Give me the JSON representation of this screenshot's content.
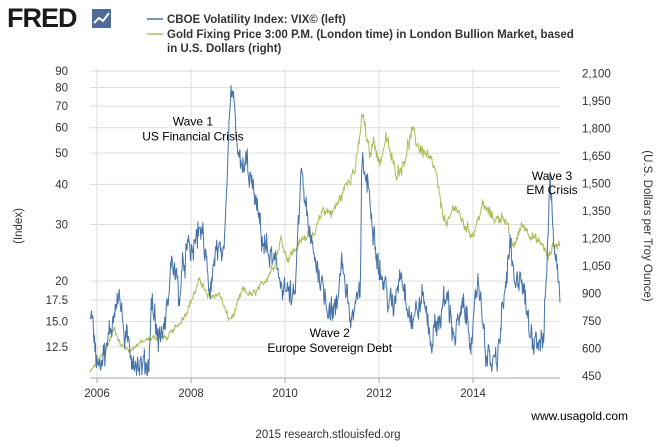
{
  "logo": {
    "text": "FRED",
    "icon": "fred-chart-logo-icon"
  },
  "colors": {
    "vix": "#4572a7",
    "gold": "#aabe5a",
    "grid": "#dddddd",
    "text": "#333333",
    "axis": "#aaaaaa"
  },
  "chart_data": {
    "type": "line",
    "title": "",
    "x_ticks": [
      "2006",
      "2008",
      "2010",
      "2012",
      "2014"
    ],
    "xlim": [
      2005.85,
      2015.85
    ],
    "left_axis": {
      "label": "(Index)",
      "scale": "log",
      "lim": [
        10.0,
        92.0
      ],
      "ticks": [
        "12.5",
        "15.0",
        "17.5",
        "20",
        "30",
        "40",
        "50",
        "60",
        "70",
        "80",
        "90"
      ]
    },
    "right_axis": {
      "label": "(U.S. Dollars per Troy Ounce)",
      "scale": "linear",
      "lim": [
        440,
        2130
      ],
      "ticks": [
        "450",
        "600",
        "750",
        "900",
        "1,050",
        "1,200",
        "1,350",
        "1,500",
        "1,650",
        "1,800",
        "1,950",
        "2,100"
      ]
    },
    "series": [
      {
        "name": "CBOE Volatility Index: VIX© (left)",
        "axis": "left",
        "color": "#4572a7",
        "points": [
          [
            2005.85,
            16.5
          ],
          [
            2006.0,
            11.5
          ],
          [
            2006.2,
            12.0
          ],
          [
            2006.45,
            19.0
          ],
          [
            2006.6,
            13.0
          ],
          [
            2006.9,
            10.8
          ],
          [
            2007.1,
            11.0
          ],
          [
            2007.16,
            18.0
          ],
          [
            2007.3,
            13.0
          ],
          [
            2007.45,
            14.5
          ],
          [
            2007.6,
            24.0
          ],
          [
            2007.75,
            18.0
          ],
          [
            2007.9,
            25.0
          ],
          [
            2008.0,
            24.0
          ],
          [
            2008.2,
            30.0
          ],
          [
            2008.4,
            19.0
          ],
          [
            2008.55,
            26.0
          ],
          [
            2008.7,
            22.0
          ],
          [
            2008.78,
            45.0
          ],
          [
            2008.85,
            80.0
          ],
          [
            2008.95,
            62.0
          ],
          [
            2009.05,
            44.0
          ],
          [
            2009.2,
            46.0
          ],
          [
            2009.35,
            36.0
          ],
          [
            2009.55,
            26.0
          ],
          [
            2009.8,
            22.0
          ],
          [
            2010.0,
            19.0
          ],
          [
            2010.2,
            17.0
          ],
          [
            2010.35,
            45.0
          ],
          [
            2010.5,
            28.0
          ],
          [
            2010.7,
            22.0
          ],
          [
            2010.9,
            17.0
          ],
          [
            2011.1,
            16.0
          ],
          [
            2011.2,
            24.0
          ],
          [
            2011.4,
            15.0
          ],
          [
            2011.6,
            18.0
          ],
          [
            2011.63,
            48.0
          ],
          [
            2011.8,
            37.0
          ],
          [
            2012.0,
            22.0
          ],
          [
            2012.3,
            16.0
          ],
          [
            2012.45,
            22.0
          ],
          [
            2012.7,
            15.0
          ],
          [
            2012.95,
            18.0
          ],
          [
            2013.1,
            13.0
          ],
          [
            2013.45,
            18.0
          ],
          [
            2013.6,
            13.5
          ],
          [
            2013.8,
            16.5
          ],
          [
            2014.0,
            13.0
          ],
          [
            2014.1,
            21.0
          ],
          [
            2014.3,
            11.5
          ],
          [
            2014.5,
            11.0
          ],
          [
            2014.79,
            26.0
          ],
          [
            2014.9,
            18.0
          ],
          [
            2015.0,
            22.0
          ],
          [
            2015.2,
            14.0
          ],
          [
            2015.5,
            13.0
          ],
          [
            2015.64,
            41.0
          ],
          [
            2015.75,
            24.0
          ],
          [
            2015.85,
            18.0
          ]
        ]
      },
      {
        "name": "Gold Fixing Price 3:00 P.M. (London time) in London Bullion Market, based in U.S. Dollars (right)",
        "axis": "right",
        "color": "#aabe5a",
        "points": [
          [
            2005.85,
            470
          ],
          [
            2006.0,
            525
          ],
          [
            2006.2,
            600
          ],
          [
            2006.37,
            710
          ],
          [
            2006.5,
            620
          ],
          [
            2006.7,
            590
          ],
          [
            2006.9,
            630
          ],
          [
            2007.2,
            660
          ],
          [
            2007.5,
            660
          ],
          [
            2007.75,
            740
          ],
          [
            2007.9,
            800
          ],
          [
            2008.1,
            920
          ],
          [
            2008.2,
            980
          ],
          [
            2008.35,
            880
          ],
          [
            2008.6,
            900
          ],
          [
            2008.8,
            760
          ],
          [
            2008.9,
            780
          ],
          [
            2009.1,
            920
          ],
          [
            2009.3,
            890
          ],
          [
            2009.5,
            940
          ],
          [
            2009.75,
            1050
          ],
          [
            2009.92,
            1200
          ],
          [
            2010.05,
            1090
          ],
          [
            2010.3,
            1170
          ],
          [
            2010.5,
            1240
          ],
          [
            2010.6,
            1190
          ],
          [
            2010.8,
            1360
          ],
          [
            2011.0,
            1340
          ],
          [
            2011.2,
            1430
          ],
          [
            2011.35,
            1530
          ],
          [
            2011.5,
            1580
          ],
          [
            2011.65,
            1880
          ],
          [
            2011.8,
            1650
          ],
          [
            2011.9,
            1750
          ],
          [
            2012.0,
            1600
          ],
          [
            2012.15,
            1750
          ],
          [
            2012.35,
            1560
          ],
          [
            2012.5,
            1600
          ],
          [
            2012.7,
            1780
          ],
          [
            2012.85,
            1700
          ],
          [
            2013.0,
            1660
          ],
          [
            2013.2,
            1570
          ],
          [
            2013.3,
            1400
          ],
          [
            2013.45,
            1260
          ],
          [
            2013.6,
            1390
          ],
          [
            2013.8,
            1280
          ],
          [
            2014.0,
            1220
          ],
          [
            2014.2,
            1380
          ],
          [
            2014.5,
            1300
          ],
          [
            2014.65,
            1330
          ],
          [
            2014.85,
            1150
          ],
          [
            2015.05,
            1280
          ],
          [
            2015.3,
            1200
          ],
          [
            2015.5,
            1160
          ],
          [
            2015.6,
            1090
          ],
          [
            2015.7,
            1160
          ],
          [
            2015.85,
            1170
          ]
        ]
      }
    ],
    "annotations": [
      {
        "lines": [
          "Wave 1",
          "US Financial Crisis"
        ]
      },
      {
        "lines": [
          "Wave 2",
          "Europe Sovereign Debt"
        ]
      },
      {
        "lines": [
          "Wave 3",
          "EM Crisis"
        ]
      }
    ]
  },
  "footer": {
    "credit": "2015 research.stlouisfed.org",
    "source": "www.usagold.com"
  }
}
